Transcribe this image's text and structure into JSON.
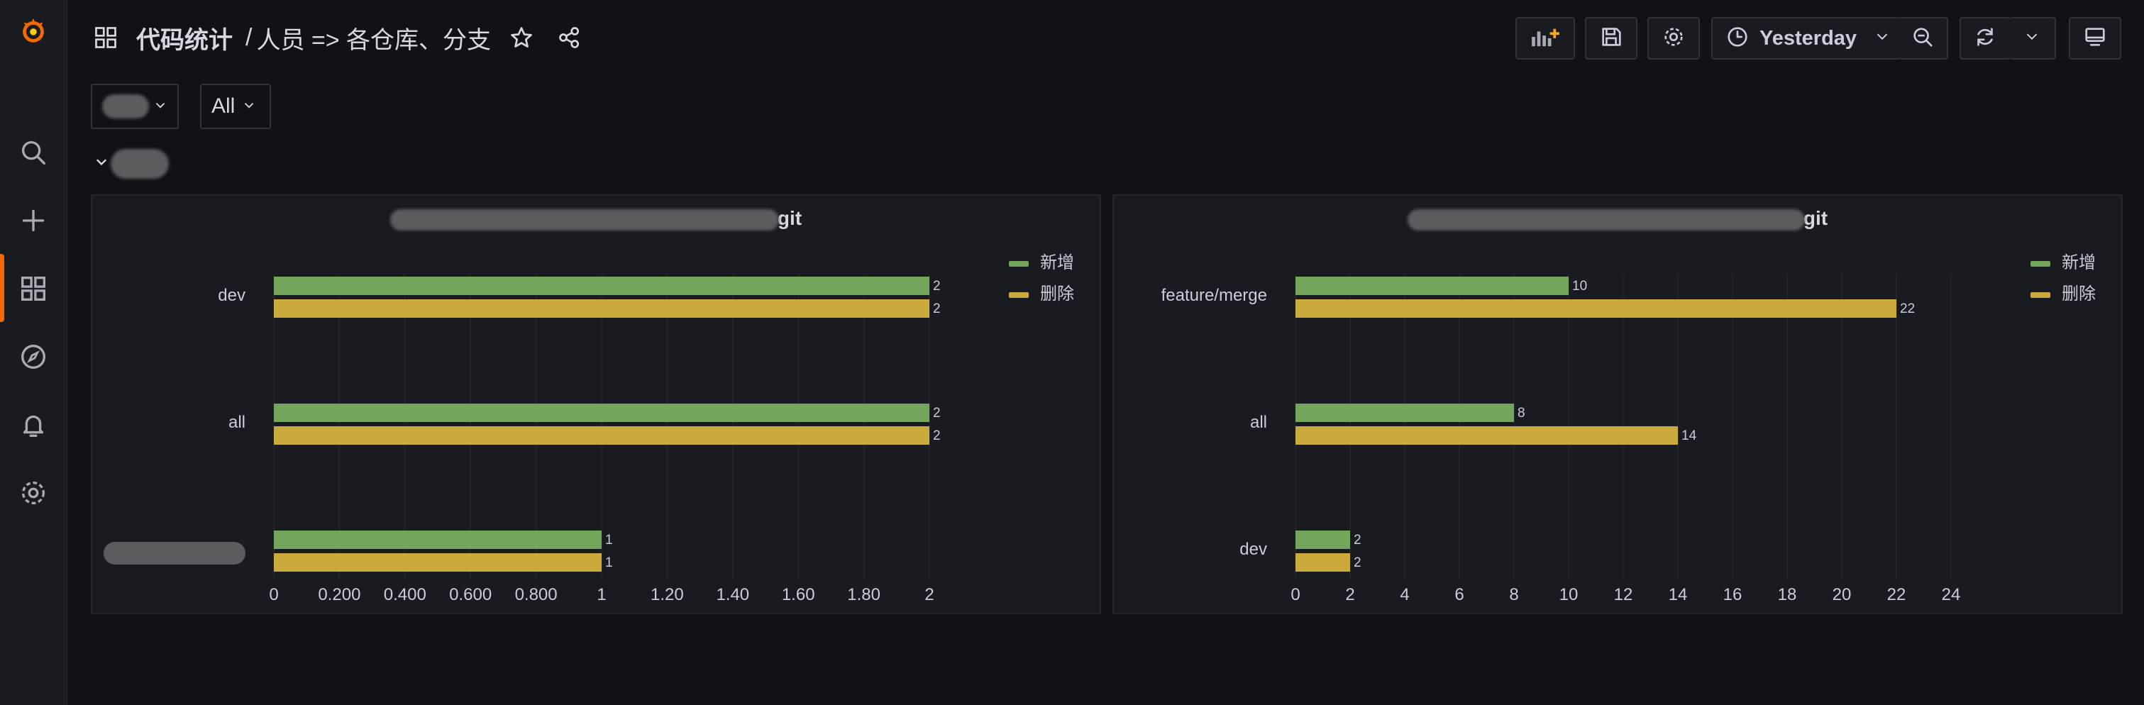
{
  "breadcrumb": {
    "folder": "代码统计",
    "separator": "/",
    "dashboard": "人员 => 各仓库、分支"
  },
  "toolbar": {
    "time_range": "Yesterday"
  },
  "variables": {
    "second_select_value": "All"
  },
  "colors": {
    "added": "#73a55b",
    "deleted": "#cba93c",
    "accent": "#f46800",
    "grid": "#2c2e33",
    "text": "#ccccdc"
  },
  "icons": {
    "sidebar": [
      "grafana-logo-icon",
      "search-icon",
      "plus-icon",
      "dashboards-icon",
      "explore-icon",
      "alerting-icon",
      "settings-icon"
    ],
    "toolbar": [
      "add-panel-icon",
      "save-icon",
      "gear-icon",
      "clock-icon",
      "chevron-down-icon",
      "zoom-out-icon",
      "refresh-icon",
      "tv-mode-icon"
    ]
  },
  "panels": [
    {
      "title_suffix": "git",
      "legend": [
        "新增",
        "删除"
      ]
    },
    {
      "title_suffix": "git",
      "legend": [
        "新增",
        "删除"
      ]
    }
  ],
  "chart_data": [
    {
      "type": "bar",
      "orientation": "horizontal",
      "categories": [
        "dev",
        "all",
        ""
      ],
      "series": [
        {
          "name": "新增",
          "values": [
            2,
            2,
            1
          ]
        },
        {
          "name": "删除",
          "values": [
            2,
            2,
            1
          ]
        }
      ],
      "xlim": [
        0,
        2
      ],
      "ticks": [
        "0",
        "0.200",
        "0.400",
        "0.600",
        "0.800",
        "1",
        "1.20",
        "1.40",
        "1.60",
        "1.80",
        "2"
      ],
      "legend_position": "top-right",
      "grid": true
    },
    {
      "type": "bar",
      "orientation": "horizontal",
      "categories": [
        "feature/merge",
        "all",
        "dev"
      ],
      "series": [
        {
          "name": "新增",
          "values": [
            10,
            8,
            2
          ]
        },
        {
          "name": "删除",
          "values": [
            22,
            14,
            2
          ]
        }
      ],
      "xlim": [
        0,
        24
      ],
      "ticks": [
        "0",
        "2",
        "4",
        "6",
        "8",
        "10",
        "12",
        "14",
        "16",
        "18",
        "20",
        "22",
        "24"
      ],
      "legend_position": "top-right",
      "grid": true
    }
  ]
}
